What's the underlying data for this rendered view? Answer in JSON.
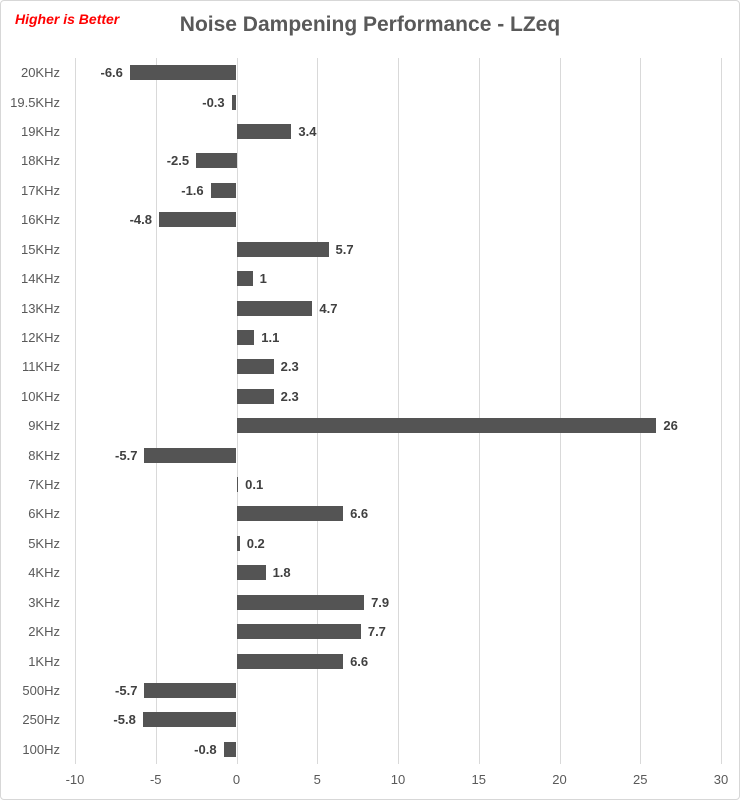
{
  "header": {
    "note": "Higher is Better",
    "title": "Noise Dampening Performance - LZeq"
  },
  "chart_data": {
    "type": "bar",
    "orientation": "horizontal",
    "title": "Noise Dampening Performance - LZeq",
    "annotation": "Higher is Better",
    "categories": [
      "20KHz",
      "19.5KHz",
      "19KHz",
      "18KHz",
      "17KHz",
      "16KHz",
      "15KHz",
      "14KHz",
      "13KHz",
      "12KHz",
      "11KHz",
      "10KHz",
      "9KHz",
      "8KHz",
      "7KHz",
      "6KHz",
      "5KHz",
      "4KHz",
      "3KHz",
      "2KHz",
      "1KHz",
      "500Hz",
      "250Hz",
      "100Hz"
    ],
    "values": [
      -6.6,
      -0.3,
      3.4,
      -2.5,
      -1.6,
      -4.8,
      5.7,
      1,
      4.7,
      1.1,
      2.3,
      2.3,
      26,
      -5.7,
      0.1,
      6.6,
      0.2,
      1.8,
      7.9,
      7.7,
      6.6,
      -5.7,
      -5.8,
      -0.8
    ],
    "data_labels": [
      "-6.6",
      "-0.3",
      "3.4",
      "-2.5",
      "-1.6",
      "-4.8",
      "5.7",
      "1",
      "4.7",
      "1.1",
      "2.3",
      "2.3",
      "26",
      "-5.7",
      "0.1",
      "6.6",
      "0.2",
      "1.8",
      "7.9",
      "7.7",
      "6.6",
      "-5.7",
      "-5.8",
      "-0.8"
    ],
    "xlim": [
      -10,
      30
    ],
    "x_ticks": [
      -10,
      -5,
      0,
      5,
      10,
      15,
      20,
      25,
      30
    ],
    "grid": "vertical",
    "legend": "none",
    "colors": {
      "bar": "#545454",
      "data_label": "#404040",
      "category_label": "#595959",
      "axis_label": "#595959",
      "title": "#595959",
      "note": "#ff0000",
      "gridline": "#d9d9d9",
      "background": "#ffffff"
    }
  }
}
